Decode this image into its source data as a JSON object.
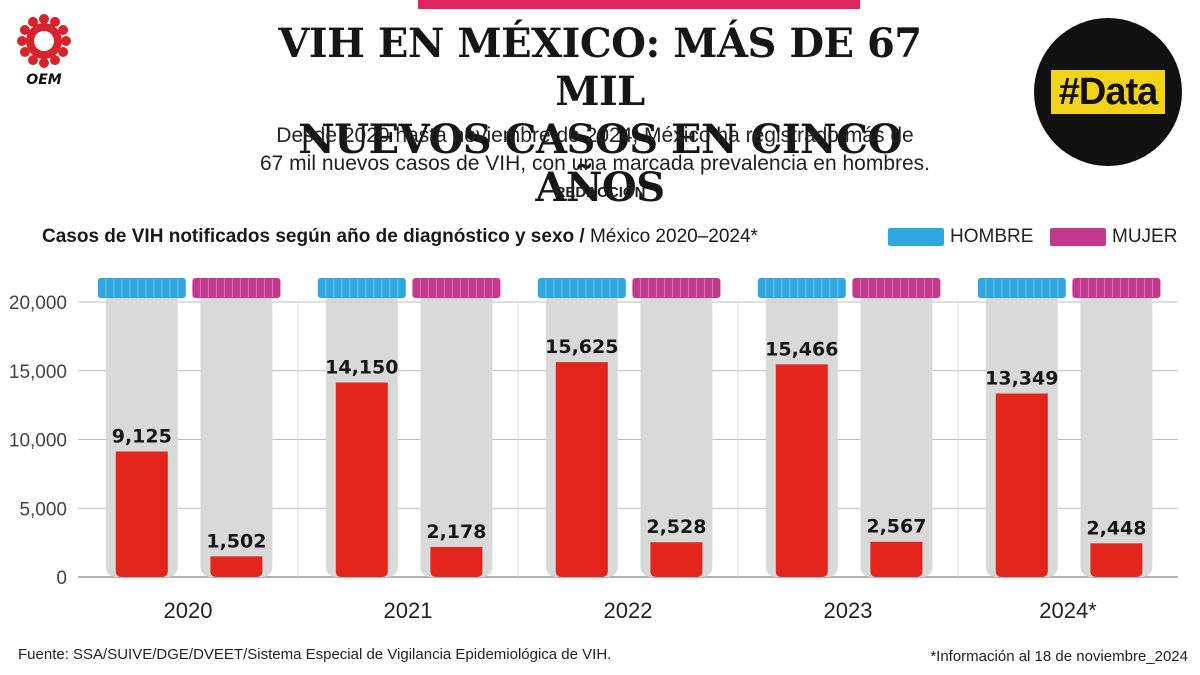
{
  "header": {
    "logo_text": "OEM",
    "title_line1": "VIH EN MÉXICO: MÁS DE 67 MIL",
    "title_line2": "NUEVOS CASOS EN CINCO AÑOS",
    "subtitle_line1": "Desde 2020 hasta noviembre de 2024, México ha registrado más de",
    "subtitle_line2": "67 mil nuevos casos de VIH, con una marcada prevalencia en hombres.",
    "byline": "REDACCIÓN",
    "badge": "#Data"
  },
  "colors": {
    "accent_top": "#e0245e",
    "hombre": "#2ea6df",
    "mujer": "#c2398e",
    "bar": "#e3251b",
    "tube": "#d9d9d9",
    "badge_bg": "#111111",
    "badge_fg": "#f3d31a",
    "logo": "#d8232a"
  },
  "chart_data": {
    "type": "bar",
    "title": "Casos de VIH notificados según año de diagnóstico y sexo",
    "title_suffix": "México 2020–2024*",
    "categories": [
      "2020",
      "2021",
      "2022",
      "2023",
      "2024*"
    ],
    "series": [
      {
        "name": "HOMBRE",
        "values": [
          9125,
          14150,
          15625,
          15466,
          13349
        ],
        "labels": [
          "9,125",
          "14,150",
          "15,625",
          "15,466",
          "13,349"
        ]
      },
      {
        "name": "MUJER",
        "values": [
          1502,
          2178,
          2528,
          2567,
          2448
        ],
        "labels": [
          "1,502",
          "2,178",
          "2,528",
          "2,567",
          "2,448"
        ]
      }
    ],
    "ylim": [
      0,
      20000
    ],
    "yticks": [
      0,
      5000,
      10000,
      15000,
      20000
    ],
    "ytick_labels": [
      "0",
      "5,000",
      "10,000",
      "15,000",
      "20,000"
    ],
    "grid": true,
    "legend": "top-right"
  },
  "footer": {
    "source": "Fuente: SSA/SUIVE/DGE/DVEET/Sistema Especial de Vigilancia Epidemiológica de VIH.",
    "note": "*Información al 18 de noviembre_2024"
  }
}
